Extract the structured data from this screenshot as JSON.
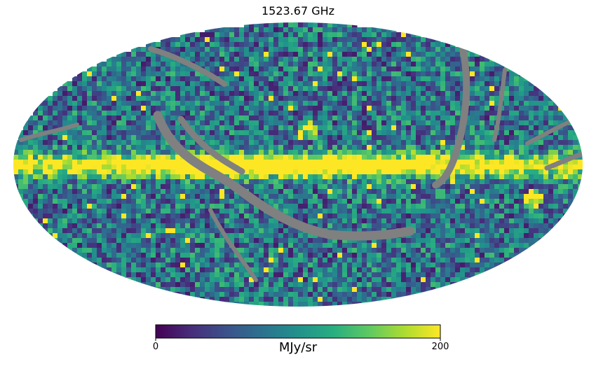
{
  "title": "1523.67 GHz",
  "colorbar": {
    "min_label": "0",
    "max_label": "200",
    "unit": "MJy/sr",
    "min": 0,
    "max": 200,
    "colormap": "viridis",
    "stops": [
      "#440154",
      "#472d7b",
      "#3b528b",
      "#2c728e",
      "#21918c",
      "#28ae80",
      "#5ec962",
      "#addc30",
      "#fde725"
    ]
  },
  "map": {
    "projection": "mollweide",
    "masked_color": "#808080",
    "background": "#ffffff"
  }
}
